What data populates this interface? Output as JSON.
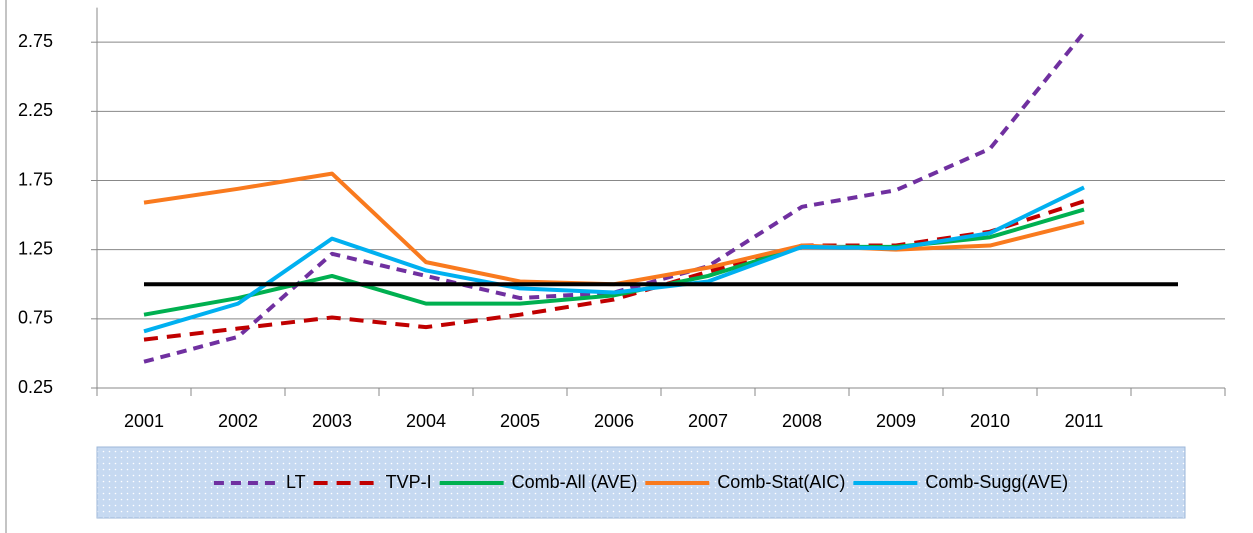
{
  "chart_data": {
    "type": "line",
    "categories": [
      "2001",
      "2002",
      "2003",
      "2004",
      "2005",
      "2006",
      "2007",
      "2008",
      "2009",
      "2010",
      "2011",
      null
    ],
    "ylim": [
      0.25,
      3.0
    ],
    "yticks": [
      0.25,
      0.75,
      1.25,
      1.75,
      2.25,
      2.75
    ],
    "grid": true,
    "legend": "bottom",
    "series": [
      {
        "name": "LT",
        "color": "#7030a0",
        "style": "dashed",
        "values": [
          0.44,
          0.62,
          1.22,
          1.06,
          0.9,
          0.94,
          1.13,
          1.56,
          1.68,
          1.98,
          2.82,
          null
        ]
      },
      {
        "name": "TVP-I",
        "color": "#c00000",
        "style": "dashed",
        "values": [
          0.6,
          0.68,
          0.76,
          0.69,
          0.78,
          0.89,
          1.09,
          1.28,
          1.28,
          1.38,
          1.6,
          null
        ]
      },
      {
        "name": "Comb-All (AVE)",
        "color": "#00b050",
        "style": "solid",
        "values": [
          0.78,
          0.9,
          1.06,
          0.86,
          0.86,
          0.92,
          1.06,
          1.27,
          1.27,
          1.34,
          1.54,
          null
        ]
      },
      {
        "name": "Comb-Stat(AIC)",
        "color": "#f97a1e",
        "style": "solid",
        "values": [
          1.59,
          1.69,
          1.8,
          1.16,
          1.02,
          1.0,
          1.12,
          1.28,
          1.25,
          1.28,
          1.45,
          null
        ]
      },
      {
        "name": "Comb-Sugg(AVE)",
        "color": "#00b0f0",
        "style": "solid",
        "values": [
          0.66,
          0.86,
          1.33,
          1.1,
          0.97,
          0.94,
          1.02,
          1.27,
          1.26,
          1.37,
          1.7,
          null
        ]
      },
      {
        "color": "#000000",
        "style": "solid",
        "values": [
          1,
          1,
          1,
          1,
          1,
          1,
          1,
          1,
          1,
          1,
          1,
          1
        ]
      }
    ]
  }
}
